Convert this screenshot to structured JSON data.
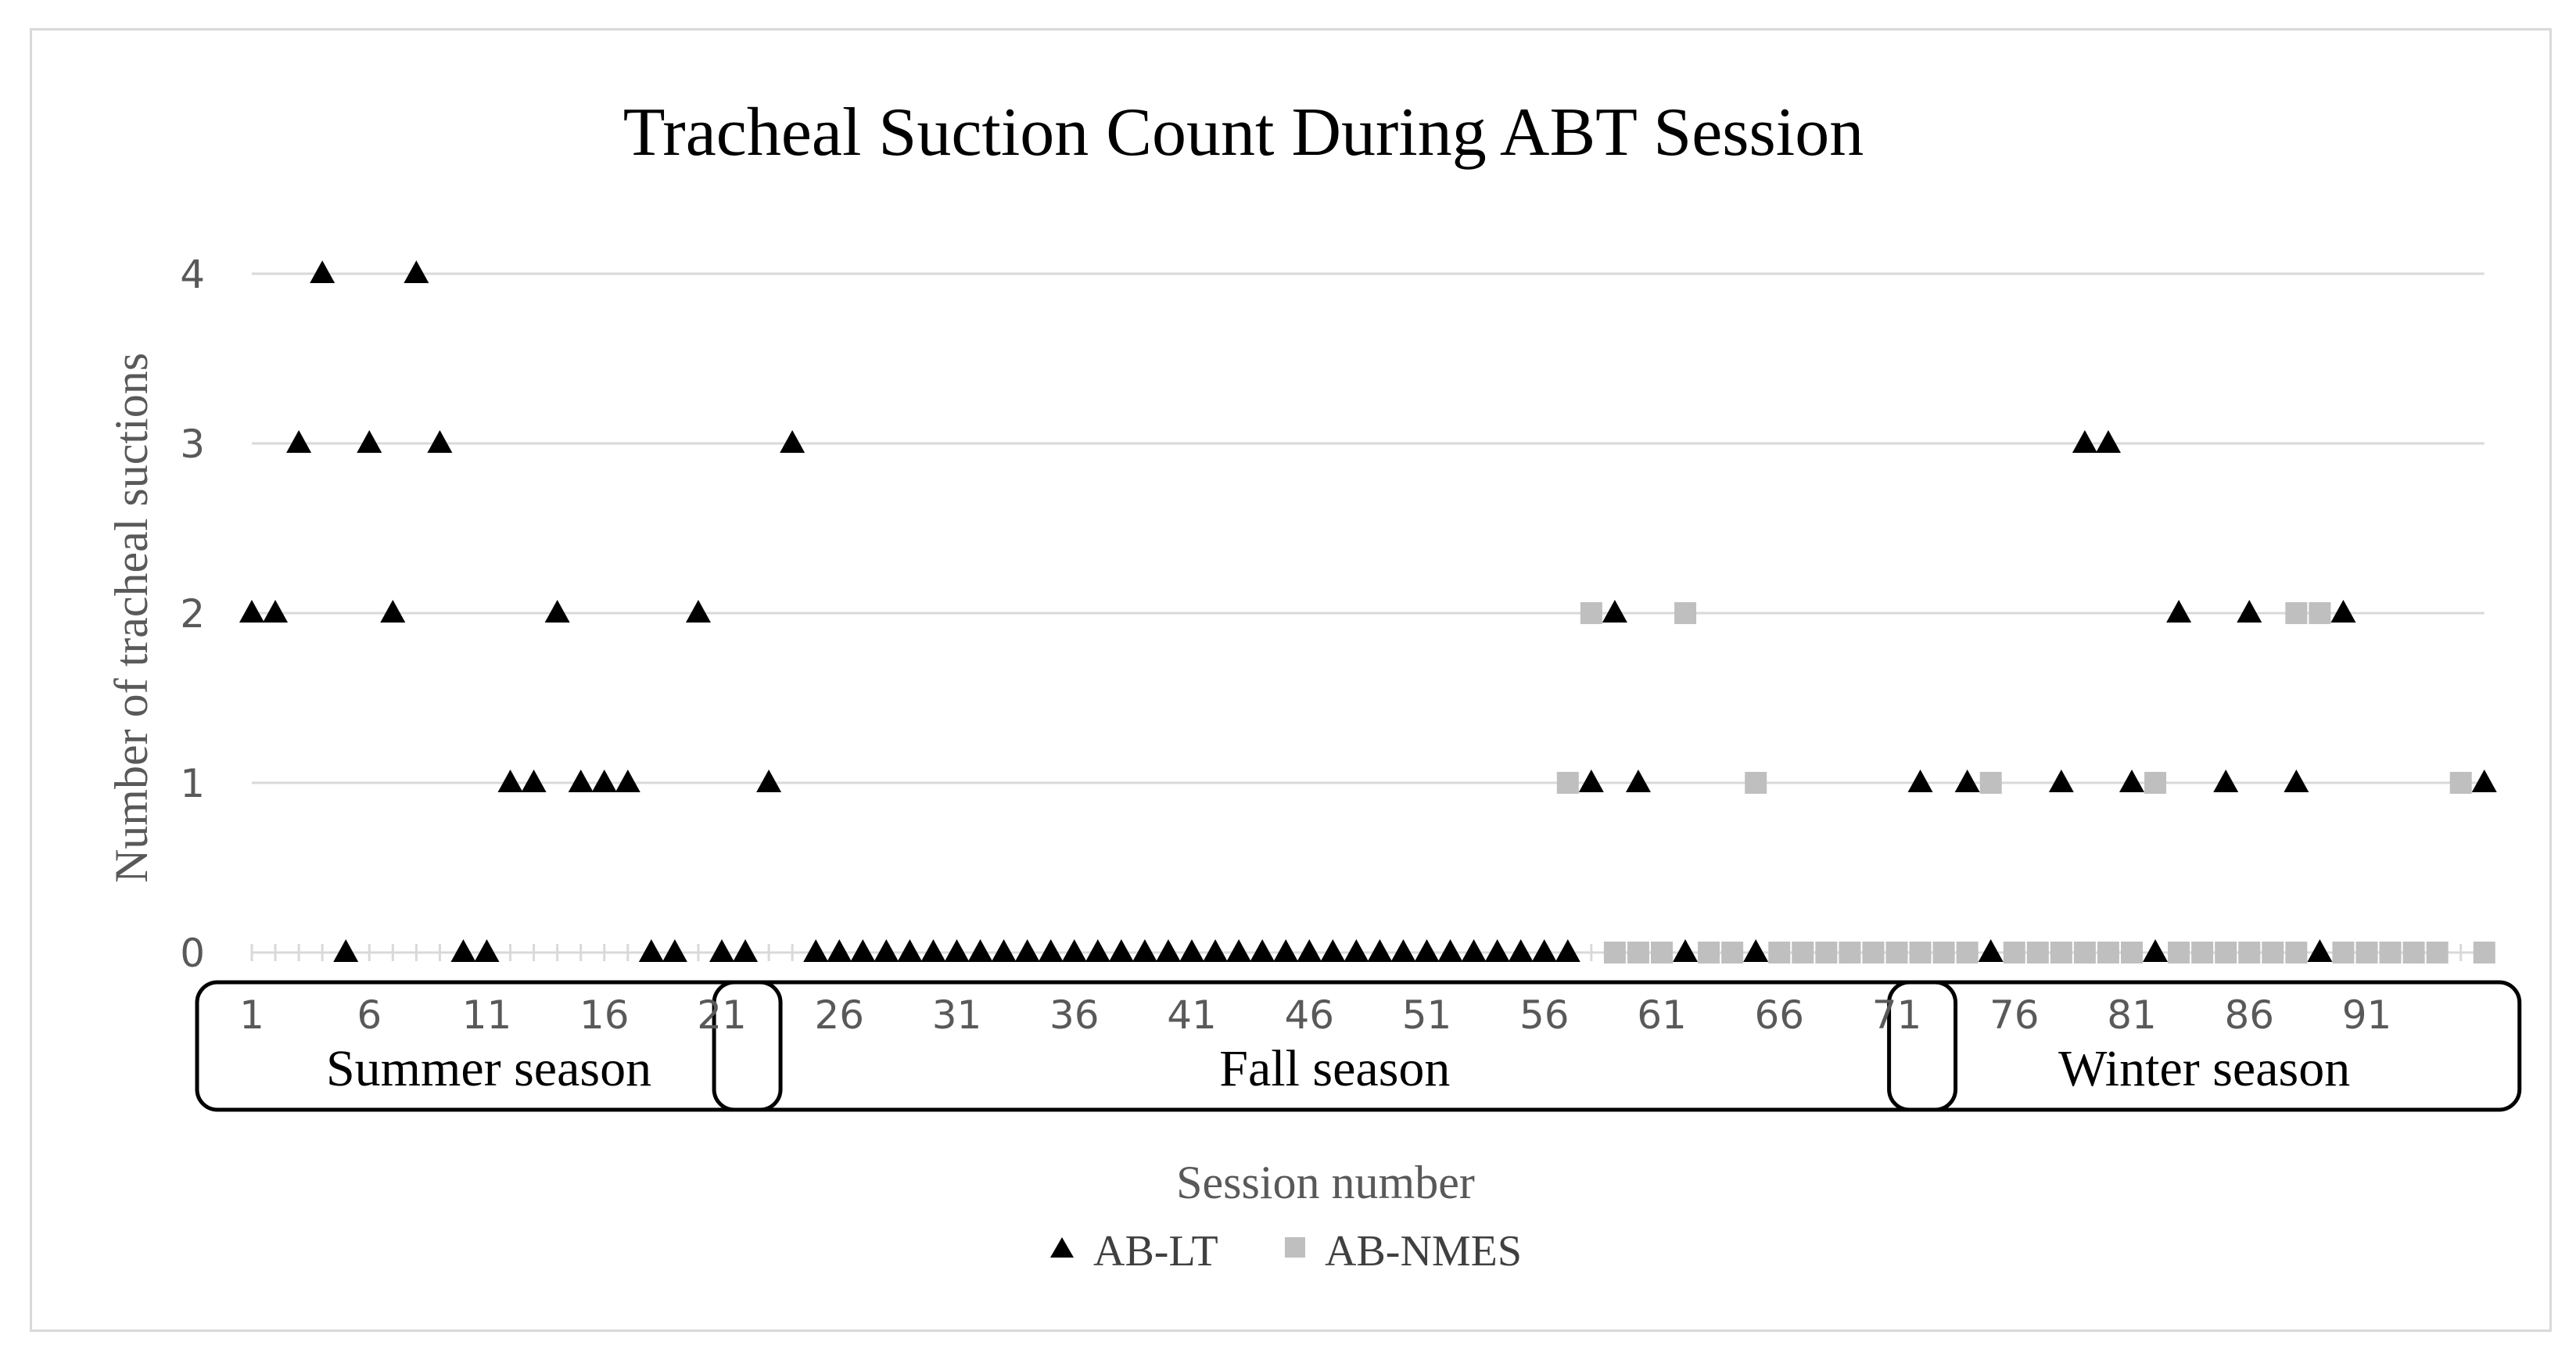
{
  "chart_data": {
    "type": "scatter",
    "title": "Tracheal Suction Count During ABT Session",
    "xlabel": "Session number",
    "ylabel": "Number of tracheal suctions",
    "xlim": [
      1,
      96
    ],
    "ylim": [
      0,
      4
    ],
    "yticks": [
      0,
      1,
      2,
      3,
      4
    ],
    "xtick_labels": [
      "1",
      "6",
      "11",
      "16",
      "21",
      "26",
      "31",
      "36",
      "41",
      "46",
      "51",
      "56",
      "61",
      "66",
      "71",
      "76",
      "81",
      "86",
      "91"
    ],
    "xtick_values": [
      1,
      6,
      11,
      16,
      21,
      26,
      31,
      36,
      41,
      46,
      51,
      56,
      61,
      66,
      71,
      76,
      81,
      86,
      91
    ],
    "grid": true,
    "legend_position": "bottom",
    "seasons": [
      {
        "label": "Summer season",
        "from": 1,
        "to": 22
      },
      {
        "label": "Fall season",
        "from": 23,
        "to": 72
      },
      {
        "label": "Winter season",
        "from": 73,
        "to": 96
      }
    ],
    "series": [
      {
        "name": "AB-LT",
        "marker": "triangle",
        "color": "#000000",
        "points": [
          [
            1,
            2
          ],
          [
            2,
            2
          ],
          [
            3,
            3
          ],
          [
            4,
            4
          ],
          [
            5,
            0
          ],
          [
            6,
            3
          ],
          [
            7,
            2
          ],
          [
            8,
            4
          ],
          [
            9,
            3
          ],
          [
            10,
            0
          ],
          [
            11,
            0
          ],
          [
            12,
            1
          ],
          [
            13,
            1
          ],
          [
            14,
            2
          ],
          [
            15,
            1
          ],
          [
            16,
            1
          ],
          [
            17,
            1
          ],
          [
            18,
            0
          ],
          [
            19,
            0
          ],
          [
            20,
            2
          ],
          [
            21,
            0
          ],
          [
            22,
            0
          ],
          [
            23,
            1
          ],
          [
            24,
            3
          ],
          [
            25,
            0
          ],
          [
            26,
            0
          ],
          [
            27,
            0
          ],
          [
            28,
            0
          ],
          [
            29,
            0
          ],
          [
            30,
            0
          ],
          [
            31,
            0
          ],
          [
            32,
            0
          ],
          [
            33,
            0
          ],
          [
            34,
            0
          ],
          [
            35,
            0
          ],
          [
            36,
            0
          ],
          [
            37,
            0
          ],
          [
            38,
            0
          ],
          [
            39,
            0
          ],
          [
            40,
            0
          ],
          [
            41,
            0
          ],
          [
            42,
            0
          ],
          [
            43,
            0
          ],
          [
            44,
            0
          ],
          [
            45,
            0
          ],
          [
            46,
            0
          ],
          [
            47,
            0
          ],
          [
            48,
            0
          ],
          [
            49,
            0
          ],
          [
            50,
            0
          ],
          [
            51,
            0
          ],
          [
            52,
            0
          ],
          [
            53,
            0
          ],
          [
            54,
            0
          ],
          [
            55,
            0
          ],
          [
            56,
            0
          ],
          [
            57,
            0
          ],
          [
            58,
            1
          ],
          [
            59,
            2
          ],
          [
            60,
            1
          ],
          [
            62,
            0
          ],
          [
            65,
            0
          ],
          [
            72,
            1
          ],
          [
            74,
            1
          ],
          [
            75,
            0
          ],
          [
            78,
            1
          ],
          [
            79,
            3
          ],
          [
            80,
            3
          ],
          [
            81,
            1
          ],
          [
            82,
            0
          ],
          [
            83,
            2
          ],
          [
            85,
            1
          ],
          [
            86,
            2
          ],
          [
            88,
            1
          ],
          [
            89,
            0
          ],
          [
            90,
            2
          ],
          [
            96,
            1
          ]
        ]
      },
      {
        "name": "AB-NMES",
        "marker": "square",
        "color": "#bfbfbf",
        "points": [
          [
            57,
            1
          ],
          [
            58,
            2
          ],
          [
            62,
            2
          ],
          [
            65,
            1
          ],
          [
            75,
            1
          ],
          [
            82,
            1
          ],
          [
            88,
            2
          ],
          [
            89,
            2
          ],
          [
            95,
            1
          ],
          [
            59,
            0
          ],
          [
            60,
            0
          ],
          [
            61,
            0
          ],
          [
            63,
            0
          ],
          [
            64,
            0
          ],
          [
            66,
            0
          ],
          [
            67,
            0
          ],
          [
            68,
            0
          ],
          [
            69,
            0
          ],
          [
            70,
            0
          ],
          [
            71,
            0
          ],
          [
            72,
            0
          ],
          [
            73,
            0
          ],
          [
            74,
            0
          ],
          [
            76,
            0
          ],
          [
            77,
            0
          ],
          [
            78,
            0
          ],
          [
            79,
            0
          ],
          [
            80,
            0
          ],
          [
            81,
            0
          ],
          [
            83,
            0
          ],
          [
            84,
            0
          ],
          [
            85,
            0
          ],
          [
            86,
            0
          ],
          [
            87,
            0
          ],
          [
            88,
            0
          ],
          [
            90,
            0
          ],
          [
            91,
            0
          ],
          [
            92,
            0
          ],
          [
            93,
            0
          ],
          [
            94,
            0
          ],
          [
            96,
            0
          ]
        ]
      }
    ]
  }
}
